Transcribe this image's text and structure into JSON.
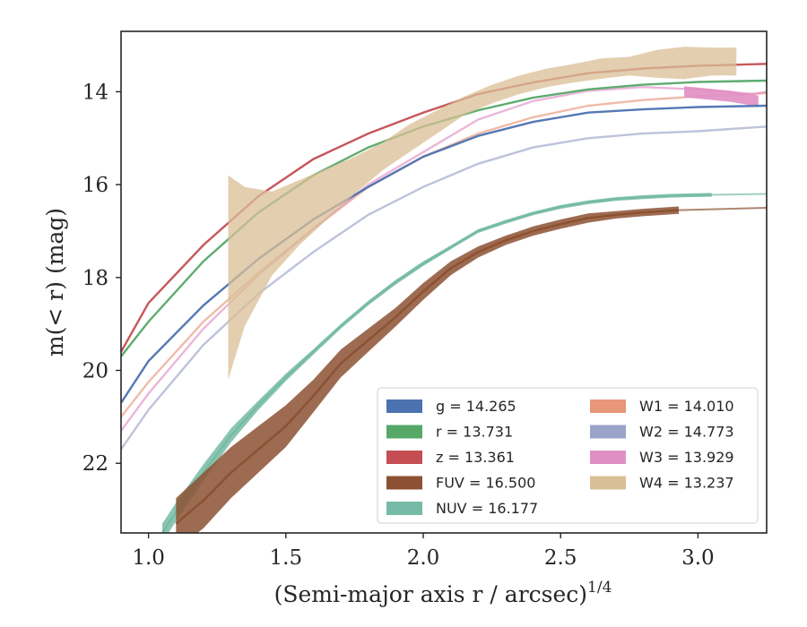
{
  "chart_data": {
    "type": "line",
    "xlabel": "(Semi-major axis r / arcsec)",
    "xlabel_superscript": "1/4",
    "ylabel": "m(< r) (mag)",
    "xlim": [
      0.9,
      3.25
    ],
    "ylim": [
      23.5,
      12.7
    ],
    "y_inverted": true,
    "xticks": [
      "1.0",
      "1.5",
      "2.0",
      "2.5",
      "3.0"
    ],
    "yticks": [
      "14",
      "16",
      "18",
      "20",
      "22"
    ],
    "grid": false,
    "legend_position": "lower-right",
    "legend": [
      {
        "label": "g = 14.265",
        "color": "#4c72b0"
      },
      {
        "label": "r = 13.731",
        "color": "#55a868"
      },
      {
        "label": "z = 13.361",
        "color": "#c44e52"
      },
      {
        "label": "FUV = 16.500",
        "color": "#8c5132"
      },
      {
        "label": "NUV = 16.177",
        "color": "#76bba5"
      },
      {
        "label": "W1 = 14.010",
        "color": "#e8977b"
      },
      {
        "label": "W2 = 14.773",
        "color": "#9aa3c8"
      },
      {
        "label": "W3 = 13.929",
        "color": "#e08fc4"
      },
      {
        "label": "W4 = 13.237",
        "color": "#d9bf96"
      }
    ],
    "series": [
      {
        "name": "g",
        "color": "#4c72b0",
        "x": [
          0.9,
          1.0,
          1.2,
          1.4,
          1.6,
          1.8,
          2.0,
          2.2,
          2.4,
          2.6,
          2.8,
          3.0,
          3.25
        ],
        "y": [
          20.7,
          19.8,
          18.6,
          17.6,
          16.75,
          16.05,
          15.4,
          14.95,
          14.65,
          14.45,
          14.38,
          14.33,
          14.3
        ]
      },
      {
        "name": "r",
        "color": "#55a868",
        "x": [
          0.9,
          1.0,
          1.2,
          1.4,
          1.6,
          1.8,
          2.0,
          2.2,
          2.4,
          2.6,
          2.8,
          3.0,
          3.25
        ],
        "y": [
          19.7,
          18.95,
          17.65,
          16.6,
          15.8,
          15.2,
          14.75,
          14.4,
          14.13,
          13.95,
          13.85,
          13.79,
          13.76
        ]
      },
      {
        "name": "z",
        "color": "#c44e52",
        "x": [
          0.9,
          1.0,
          1.2,
          1.4,
          1.6,
          1.8,
          2.0,
          2.2,
          2.4,
          2.6,
          2.8,
          3.0,
          3.25
        ],
        "y": [
          19.6,
          18.55,
          17.3,
          16.25,
          15.45,
          14.9,
          14.45,
          14.05,
          13.8,
          13.6,
          13.5,
          13.44,
          13.4
        ]
      },
      {
        "name": "FUV",
        "color": "#8c5132",
        "x": [
          1.1,
          1.2,
          1.3,
          1.4,
          1.5,
          1.6,
          1.7,
          1.8,
          1.9,
          2.0,
          2.1,
          2.2,
          2.3,
          2.4,
          2.5,
          2.6,
          2.7,
          2.8,
          2.93
        ],
        "y": [
          23.3,
          22.8,
          22.2,
          21.7,
          21.2,
          20.55,
          19.85,
          19.35,
          18.85,
          18.3,
          17.8,
          17.45,
          17.2,
          17.0,
          16.85,
          16.72,
          16.65,
          16.6,
          16.55
        ],
        "band": [
          0.55,
          0.6,
          0.55,
          0.5,
          0.45,
          0.35,
          0.3,
          0.25,
          0.2,
          0.18,
          0.15,
          0.12,
          0.1,
          0.1,
          0.1,
          0.1,
          0.08,
          0.08,
          0.08
        ],
        "extension": {
          "x": [
            2.93,
            3.25
          ],
          "y": [
            16.55,
            16.5
          ]
        }
      },
      {
        "name": "NUV",
        "color": "#76bba5",
        "x": [
          1.05,
          1.1,
          1.2,
          1.3,
          1.4,
          1.5,
          1.6,
          1.7,
          1.8,
          1.9,
          2.0,
          2.1,
          2.2,
          2.3,
          2.4,
          2.5,
          2.6,
          2.7,
          2.8,
          2.9,
          3.05
        ],
        "y": [
          23.5,
          23.05,
          22.2,
          21.4,
          20.75,
          20.15,
          19.6,
          19.05,
          18.55,
          18.1,
          17.7,
          17.35,
          17.0,
          16.8,
          16.62,
          16.48,
          16.38,
          16.31,
          16.27,
          16.24,
          16.22
        ],
        "band": [
          0.2,
          0.2,
          0.18,
          0.15,
          0.1,
          0.08,
          0.06,
          0.05,
          0.05,
          0.05,
          0.05,
          0.04,
          0.04,
          0.04,
          0.04,
          0.04,
          0.04,
          0.04,
          0.04,
          0.04,
          0.04
        ],
        "extension": {
          "x": [
            3.05,
            3.25
          ],
          "y": [
            16.22,
            16.2
          ]
        }
      },
      {
        "name": "W1",
        "color": "#e8977b",
        "x": [
          0.9,
          1.0,
          1.2,
          1.4,
          1.6,
          1.8,
          2.0,
          2.2,
          2.4,
          2.6,
          2.8,
          3.0,
          3.25
        ],
        "y": [
          21.0,
          20.25,
          18.95,
          17.9,
          16.95,
          16.05,
          15.4,
          14.9,
          14.55,
          14.3,
          14.18,
          14.1,
          14.03
        ]
      },
      {
        "name": "W2",
        "color": "#9aa3c8",
        "x": [
          0.9,
          1.0,
          1.2,
          1.4,
          1.6,
          1.8,
          2.0,
          2.2,
          2.4,
          2.6,
          2.8,
          3.0,
          3.25
        ],
        "y": [
          21.7,
          20.85,
          19.45,
          18.35,
          17.45,
          16.65,
          16.05,
          15.55,
          15.2,
          15.0,
          14.9,
          14.85,
          14.75
        ]
      },
      {
        "name": "W3",
        "color": "#e08fc4",
        "x": [
          0.9,
          1.0,
          1.2,
          1.4,
          1.6,
          1.8,
          2.0,
          2.2,
          2.4,
          2.6,
          2.8,
          3.0,
          3.2,
          3.25
        ],
        "y": [
          21.3,
          20.5,
          19.1,
          17.95,
          16.95,
          16.0,
          15.3,
          14.6,
          14.2,
          13.98,
          13.9,
          13.95,
          14.05,
          14.0
        ],
        "band_end": {
          "x": [
            2.95,
            3.12,
            3.22
          ],
          "y": [
            14.0,
            14.1,
            14.2
          ],
          "half_width": 0.12
        }
      },
      {
        "name": "W4",
        "color": "#d9bf96",
        "x": [
          1.29,
          1.35,
          1.45,
          1.55,
          1.65,
          1.75,
          1.85,
          1.95,
          2.05,
          2.15,
          2.25,
          2.35,
          2.45,
          2.55,
          2.65,
          2.75,
          2.85,
          2.95,
          3.05,
          3.14
        ],
        "y": [
          18.0,
          17.55,
          17.05,
          16.6,
          16.2,
          15.8,
          15.4,
          15.0,
          14.65,
          14.3,
          14.05,
          13.85,
          13.7,
          13.6,
          13.5,
          13.45,
          13.4,
          13.38,
          13.35,
          13.35
        ],
        "band": [
          2.2,
          1.5,
          0.9,
          0.7,
          0.55,
          0.4,
          0.3,
          0.3,
          0.25,
          0.2,
          0.2,
          0.2,
          0.2,
          0.2,
          0.22,
          0.2,
          0.3,
          0.35,
          0.3,
          0.3
        ]
      }
    ]
  }
}
